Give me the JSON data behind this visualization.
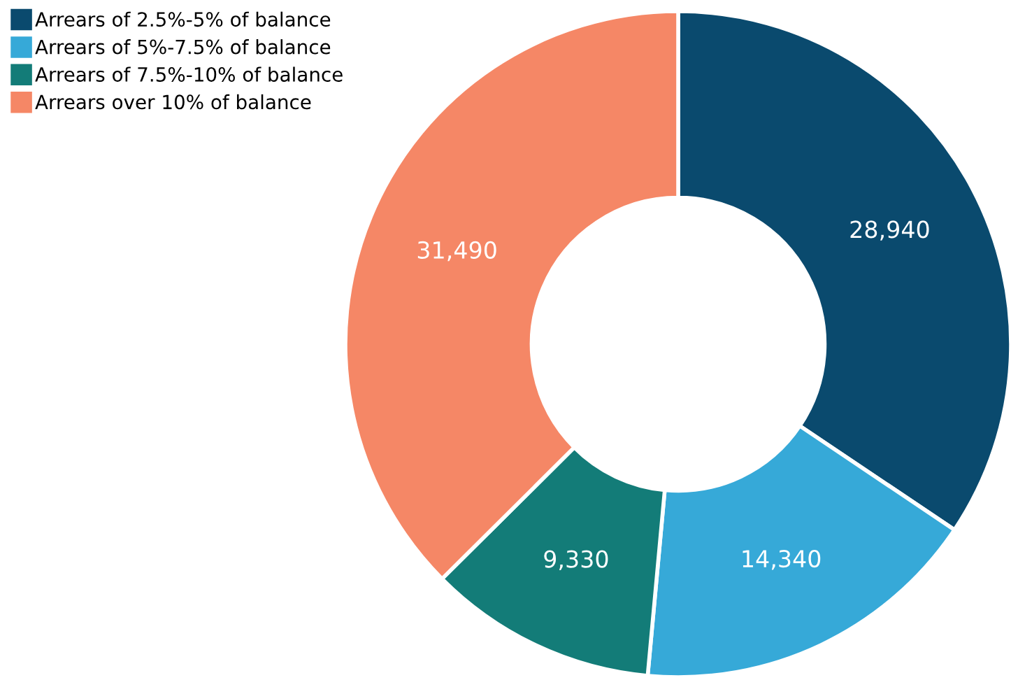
{
  "chart_data": {
    "type": "donut",
    "categories": [
      "Arrears of 2.5%-5% of balance",
      "Arrears of 5%-7.5% of balance",
      "Arrears of 7.5%-10% of balance",
      "Arrears over 10% of balance"
    ],
    "values": [
      28940,
      14340,
      9330,
      31490
    ],
    "value_labels": [
      "28,940",
      "14,340",
      "9,330",
      "31,490"
    ],
    "colors": [
      "#0a4a6e",
      "#36a9d8",
      "#137c78",
      "#f58766"
    ],
    "legend": "top left"
  }
}
